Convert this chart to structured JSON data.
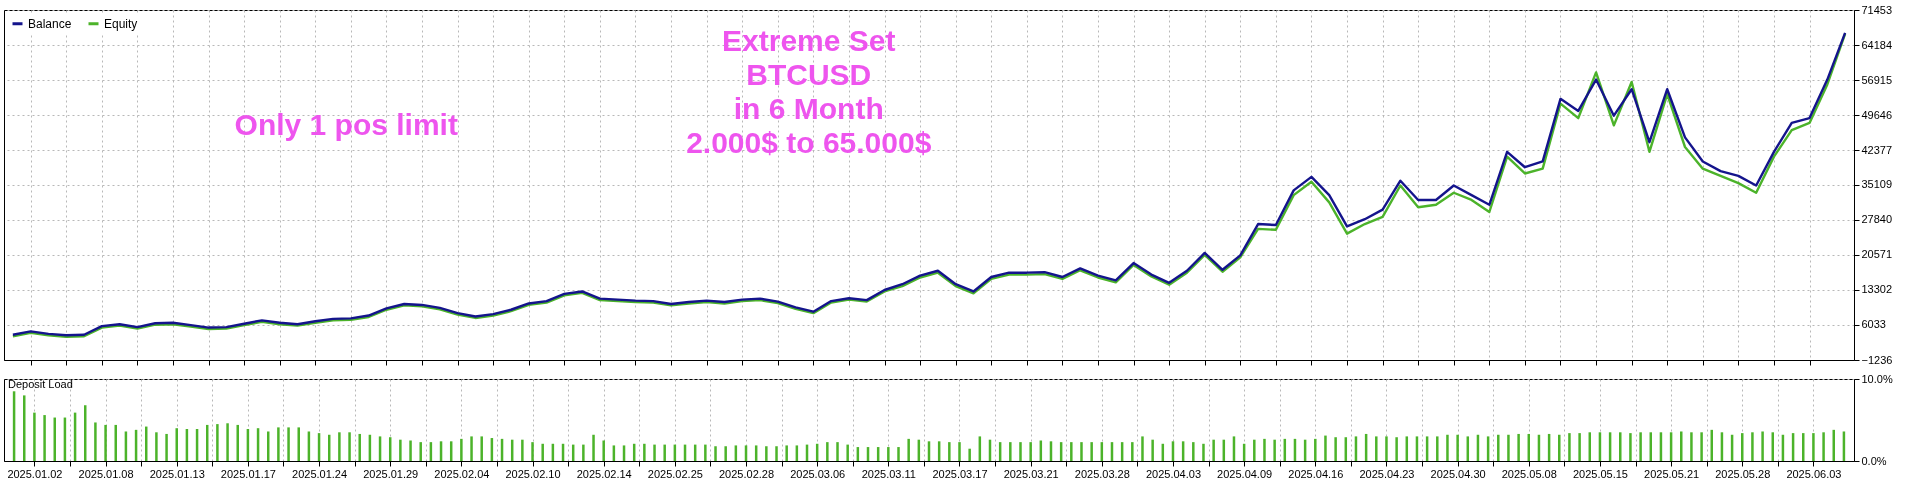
{
  "chart_data": [
    {
      "type": "line",
      "legend": "top left",
      "grid": true,
      "tick_labels": "y",
      "annotations": [
        "Only 1 pos limit",
        "Extreme Set",
        "BTCUSD",
        "in 6 Month",
        "2.000$ to 65.000$"
      ],
      "ylim": [
        -1236,
        71453
      ],
      "yticks": [
        -1236,
        6033,
        13302,
        20571,
        27840,
        35109,
        42377,
        49646,
        56915,
        64184,
        71453
      ],
      "categories": [
        null,
        "2025.01.02",
        null,
        null,
        null,
        "2025.01.08",
        null,
        null,
        null,
        "2025.01.13",
        null,
        null,
        null,
        "2025.01.17",
        null,
        null,
        null,
        "2025.01.24",
        null,
        null,
        null,
        "2025.01.29",
        null,
        null,
        null,
        "2025.02.04",
        null,
        null,
        null,
        "2025.02.10",
        null,
        null,
        null,
        "2025.02.14",
        null,
        null,
        null,
        "2025.02.25",
        null,
        null,
        null,
        "2025.02.28",
        null,
        null,
        null,
        "2025.03.06",
        null,
        null,
        null,
        "2025.03.11",
        null,
        null,
        null,
        "2025.03.17",
        null,
        null,
        null,
        "2025.03.21",
        null,
        null,
        null,
        "2025.03.28",
        null,
        null,
        null,
        "2025.04.03",
        null,
        null,
        null,
        "2025.04.09",
        null,
        null,
        null,
        "2025.04.16",
        null,
        null,
        null,
        "2025.04.23",
        null,
        null,
        null,
        "2025.04.30",
        null,
        null,
        null,
        "2025.05.08",
        null,
        null,
        null,
        "2025.05.15",
        null,
        null,
        null,
        "2025.05.21",
        null,
        null,
        null,
        "2025.05.28",
        null,
        null,
        null,
        "2025.06.03",
        null,
        null
      ],
      "series": [
        {
          "name": "Balance",
          "color": "#14148c",
          "values": [
            4000,
            4700,
            4200,
            3900,
            4000,
            5800,
            6200,
            5600,
            6400,
            6500,
            6000,
            5500,
            5600,
            6300,
            7000,
            6500,
            6200,
            6800,
            7300,
            7400,
            8000,
            9500,
            10400,
            10200,
            9600,
            8500,
            7800,
            8300,
            9200,
            10500,
            11000,
            12500,
            13000,
            11500,
            11300,
            11100,
            11000,
            10400,
            10800,
            11100,
            10800,
            11300,
            11500,
            10900,
            9700,
            8800,
            11000,
            11600,
            11200,
            13300,
            14500,
            16300,
            17300,
            14500,
            13000,
            16000,
            16900,
            16900,
            17000,
            16000,
            17800,
            16300,
            15300,
            18900,
            16500,
            14800,
            17300,
            21000,
            17500,
            20500,
            27000,
            26800,
            34000,
            36800,
            33000,
            26500,
            28000,
            30000,
            36000,
            32000,
            32000,
            35000,
            33000,
            31000,
            42000,
            38800,
            40000,
            53000,
            50500,
            57000,
            49500,
            55000,
            44000,
            55000,
            45000,
            40000,
            38000,
            37000,
            35000,
            42000,
            48000,
            49000,
            57000,
            66700
          ]
        },
        {
          "name": "Equity",
          "color": "#4cb32a",
          "values": [
            3700,
            4400,
            3900,
            3600,
            3700,
            5500,
            5900,
            5300,
            6100,
            6200,
            5700,
            5200,
            5300,
            6000,
            6700,
            6200,
            5900,
            6500,
            7000,
            7100,
            7700,
            9200,
            10100,
            9900,
            9300,
            8200,
            7500,
            8000,
            8900,
            10200,
            10700,
            12200,
            12700,
            11200,
            11000,
            10800,
            10700,
            10100,
            10500,
            10800,
            10500,
            11000,
            11200,
            10600,
            9400,
            8500,
            10700,
            11300,
            10900,
            13000,
            14100,
            15900,
            16900,
            14100,
            12600,
            15600,
            16500,
            16500,
            16600,
            15600,
            17400,
            15900,
            14900,
            18500,
            16100,
            14400,
            16900,
            20600,
            17100,
            20100,
            26000,
            25800,
            33000,
            35800,
            31500,
            25000,
            27000,
            28500,
            35000,
            30500,
            31000,
            33500,
            32000,
            29500,
            41000,
            37500,
            38500,
            52000,
            49000,
            58500,
            47500,
            56500,
            42000,
            54000,
            43000,
            38500,
            37000,
            35500,
            33500,
            41000,
            46500,
            48000,
            56000,
            66500
          ]
        }
      ]
    },
    {
      "type": "bar",
      "title": "Deposit Load",
      "grid": true,
      "color": "#4cb32a",
      "ylim": [
        0,
        10
      ],
      "yticks": [
        {
          "value": 0,
          "label": "0.0%"
        },
        {
          "value": 10,
          "label": "10.0%"
        }
      ],
      "categories": [
        null,
        null,
        "2025.01.02",
        null,
        null,
        null,
        null,
        null,
        null,
        "2025.01.08",
        null,
        null,
        null,
        null,
        null,
        null,
        "2025.01.13",
        null,
        null,
        null,
        null,
        null,
        null,
        "2025.01.17",
        null,
        null,
        null,
        null,
        null,
        null,
        "2025.01.24",
        null,
        null,
        null,
        null,
        null,
        null,
        "2025.01.29",
        null,
        null,
        null,
        null,
        null,
        null,
        "2025.02.04",
        null,
        null,
        null,
        null,
        null,
        null,
        "2025.02.10",
        null,
        null,
        null,
        null,
        null,
        null,
        "2025.02.14",
        null,
        null,
        null,
        null,
        null,
        null,
        "2025.02.25",
        null,
        null,
        null,
        null,
        null,
        null,
        "2025.02.28",
        null,
        null,
        null,
        null,
        null,
        null,
        "2025.03.06",
        null,
        null,
        null,
        null,
        null,
        null,
        "2025.03.11",
        null,
        null,
        null,
        null,
        null,
        null,
        "2025.03.17",
        null,
        null,
        null,
        null,
        null,
        null,
        "2025.03.21",
        null,
        null,
        null,
        null,
        null,
        null,
        "2025.03.28",
        null,
        null,
        null,
        null,
        null,
        null,
        "2025.04.03",
        null,
        null,
        null,
        null,
        null,
        null,
        "2025.04.09",
        null,
        null,
        null,
        null,
        null,
        null,
        "2025.04.16",
        null,
        null,
        null,
        null,
        null,
        null,
        "2025.04.23",
        null,
        null,
        null,
        null,
        null,
        null,
        "2025.04.30",
        null,
        null,
        null,
        null,
        null,
        null,
        "2025.05.08",
        null,
        null,
        null,
        null,
        null,
        null,
        "2025.05.15",
        null,
        null,
        null,
        null,
        null,
        null,
        "2025.05.21",
        null,
        null,
        null,
        null,
        null,
        null,
        "2025.05.28",
        null,
        null,
        null,
        null,
        null,
        null,
        "2025.06.03",
        null,
        null,
        null
      ],
      "values": [
        8.5,
        8.0,
        5.9,
        5.6,
        5.3,
        5.3,
        5.9,
        6.8,
        4.7,
        4.4,
        4.4,
        3.6,
        3.8,
        4.2,
        3.5,
        3.3,
        4.0,
        3.9,
        3.9,
        4.4,
        4.5,
        4.6,
        4.4,
        3.9,
        4.0,
        3.6,
        4.1,
        4.1,
        4.1,
        3.6,
        3.4,
        3.2,
        3.5,
        3.5,
        3.3,
        3.2,
        3.0,
        2.9,
        2.6,
        2.5,
        2.3,
        2.3,
        2.4,
        2.4,
        2.7,
        3.0,
        3.0,
        2.8,
        2.7,
        2.6,
        2.6,
        2.3,
        2.1,
        2.1,
        2.1,
        2.0,
        2.0,
        3.2,
        2.5,
        1.9,
        1.9,
        2.1,
        2.1,
        2.0,
        2.0,
        2.0,
        2.0,
        2.0,
        2.0,
        1.8,
        1.8,
        1.9,
        1.9,
        1.9,
        1.8,
        1.8,
        1.9,
        1.9,
        2.0,
        2.1,
        2.3,
        2.3,
        2.0,
        1.7,
        1.7,
        1.7,
        1.7,
        1.7,
        2.7,
        2.6,
        2.4,
        2.4,
        2.3,
        2.3,
        1.5,
        3.0,
        2.6,
        2.3,
        2.3,
        2.3,
        2.3,
        2.5,
        2.4,
        2.3,
        2.3,
        2.3,
        2.3,
        2.3,
        2.3,
        2.3,
        2.3,
        3.0,
        2.6,
        2.1,
        2.4,
        2.4,
        2.3,
        2.1,
        2.6,
        2.6,
        3.0,
        2.1,
        2.6,
        2.7,
        2.6,
        2.7,
        2.7,
        2.6,
        2.7,
        3.1,
        2.9,
        2.9,
        3.0,
        3.3,
        3.0,
        3.0,
        2.9,
        3.0,
        3.0,
        3.0,
        3.0,
        3.2,
        3.2,
        3.0,
        3.2,
        3.0,
        3.2,
        3.2,
        3.3,
        3.3,
        3.2,
        3.3,
        3.2,
        3.4,
        3.4,
        3.5,
        3.5,
        3.5,
        3.5,
        3.4,
        3.5,
        3.5,
        3.5,
        3.5,
        3.6,
        3.5,
        3.5,
        3.8,
        3.5,
        3.2,
        3.4,
        3.5,
        3.6,
        3.5,
        3.2,
        3.4,
        3.4,
        3.4,
        3.5,
        3.8,
        3.6
      ]
    }
  ]
}
